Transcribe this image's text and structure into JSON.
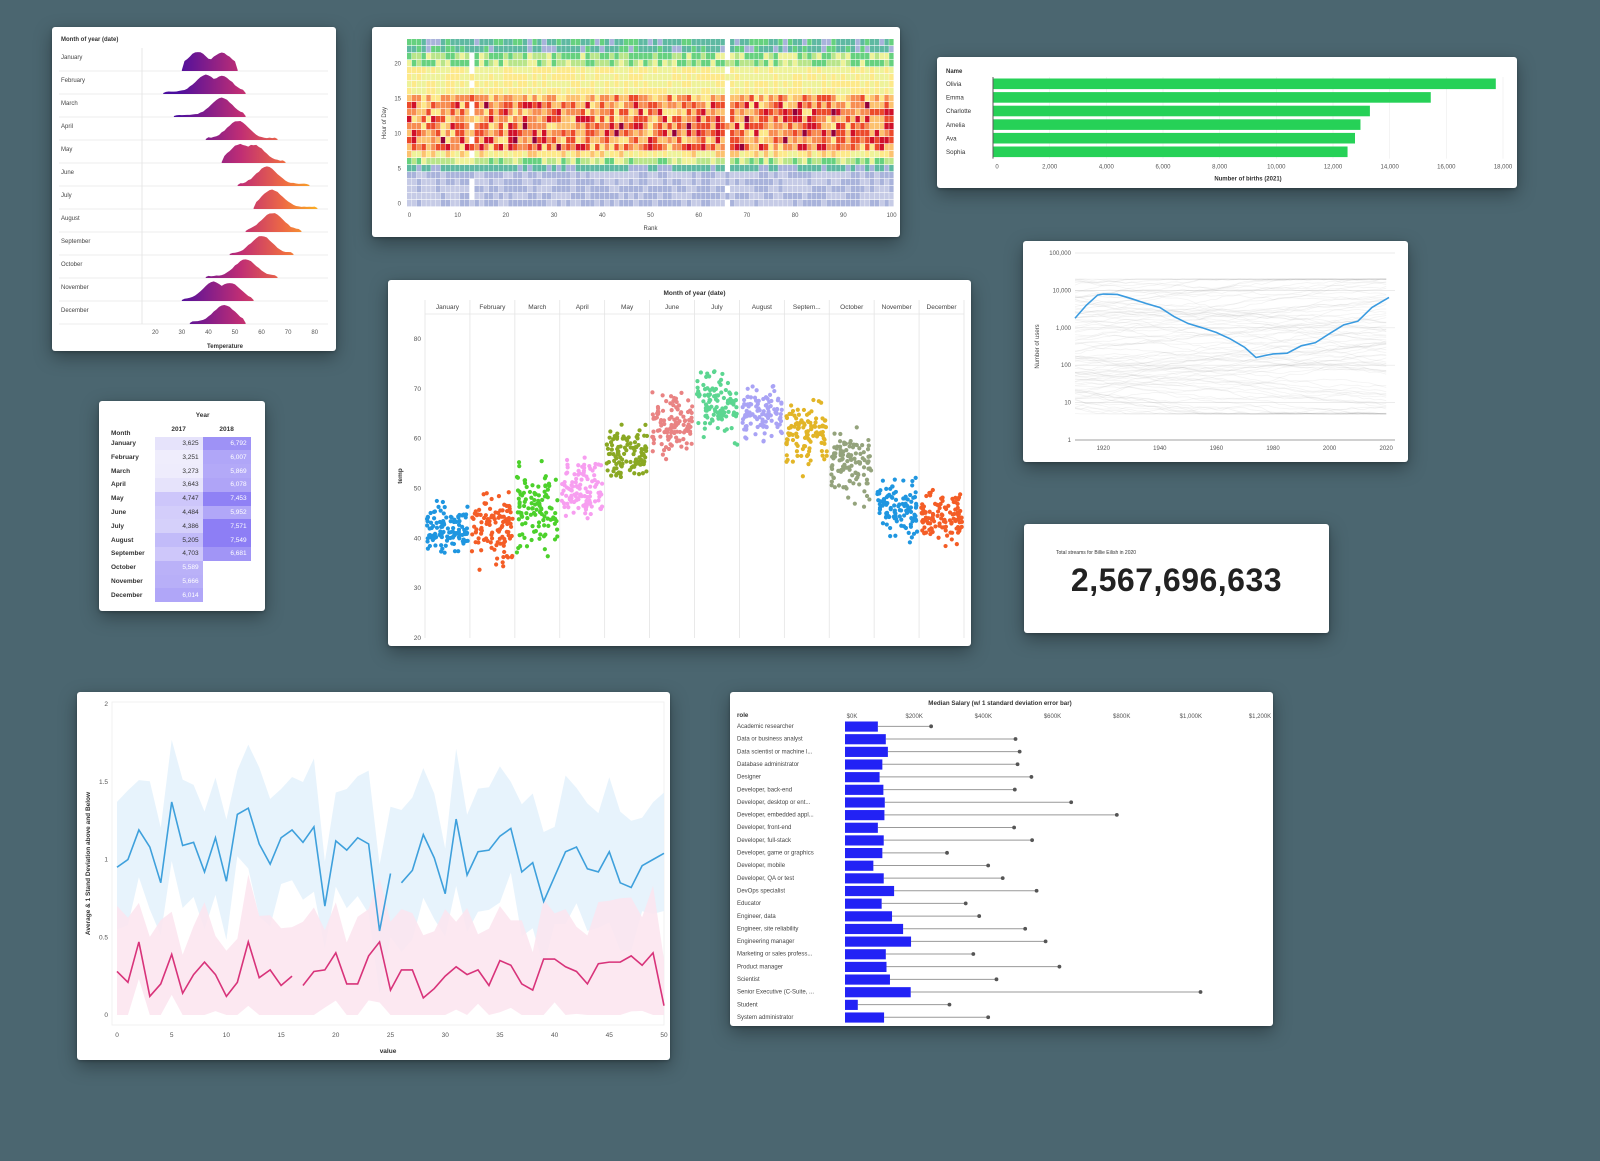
{
  "page": {
    "background": "#4b6670"
  },
  "ridgeline": {
    "title": "Month of year (date)",
    "xlabel": "Temperature",
    "ticks": [
      20,
      30,
      40,
      50,
      60,
      70,
      80
    ],
    "months": [
      "January",
      "February",
      "March",
      "April",
      "May",
      "June",
      "July",
      "August",
      "September",
      "October",
      "November",
      "December"
    ]
  },
  "heatmap": {
    "ylabel": "Hour of Day",
    "xlabel": "Rank",
    "xticks": [
      0,
      10,
      20,
      30,
      40,
      50,
      60,
      70,
      80,
      90,
      100
    ],
    "yticks": [
      0,
      5,
      10,
      15,
      20
    ]
  },
  "births": {
    "header": "Name",
    "xlabel": "Number of births (2021)",
    "color": "#26d157",
    "ticks": [
      "0",
      "2,000",
      "4,000",
      "6,000",
      "8,000",
      "10,000",
      "12,000",
      "14,000",
      "16,000",
      "18,000"
    ]
  },
  "users": {
    "ylabel": "Number of users",
    "yticks": [
      "100,000",
      "10,000",
      "1,000",
      "100",
      "10",
      "1"
    ],
    "xticks": [
      "1920",
      "1940",
      "1960",
      "1980",
      "2000",
      "2020"
    ],
    "line_color": "#3a9be0"
  },
  "pivot": {
    "title": "Year",
    "row_header": "Month",
    "columns": [
      "2017",
      "2018"
    ],
    "rows": [
      {
        "month": "January",
        "v2017": "3,625",
        "v2018": "6,792"
      },
      {
        "month": "February",
        "v2017": "3,251",
        "v2018": "6,007"
      },
      {
        "month": "March",
        "v2017": "3,273",
        "v2018": "5,869"
      },
      {
        "month": "April",
        "v2017": "3,643",
        "v2018": "6,078"
      },
      {
        "month": "May",
        "v2017": "4,747",
        "v2018": "7,453"
      },
      {
        "month": "June",
        "v2017": "4,484",
        "v2018": "5,952"
      },
      {
        "month": "July",
        "v2017": "4,386",
        "v2018": "7,571"
      },
      {
        "month": "August",
        "v2017": "5,205",
        "v2018": "7,549"
      },
      {
        "month": "September",
        "v2017": "4,703",
        "v2018": "6,681"
      },
      {
        "month": "October",
        "v2017": "5,589",
        "v2018": ""
      },
      {
        "month": "November",
        "v2017": "5,666",
        "v2018": ""
      },
      {
        "month": "December",
        "v2017": "6,014",
        "v2018": ""
      }
    ]
  },
  "scatter": {
    "title": "Month of year (date)",
    "ylabel": "temp",
    "yticks": [
      20,
      30,
      40,
      50,
      60,
      70,
      80
    ],
    "columns": [
      "January",
      "February",
      "March",
      "April",
      "May",
      "June",
      "July",
      "August",
      "Septem...",
      "October",
      "November",
      "December"
    ],
    "colors": [
      "#1f96e0",
      "#f45d26",
      "#4cd12b",
      "#f79ef0",
      "#8aa823",
      "#e98383",
      "#5cd691",
      "#a9a3f5",
      "#e2b527",
      "#94a37c",
      "#1f96e0",
      "#f45d26"
    ]
  },
  "kpi": {
    "label": "Total streams for Billie Eilish in 2020",
    "value": "2,567,696,633"
  },
  "band": {
    "ylabel": "Average & 1 Stand Deviation above and Below",
    "xlabel": "value",
    "xticks": [
      0,
      5,
      10,
      15,
      20,
      25,
      30,
      35,
      40,
      45,
      50
    ],
    "yticks": [
      "0",
      "0.5",
      "1",
      "1.5",
      "2"
    ],
    "colors": {
      "blue": "#3ea0dc",
      "pink": "#d8337a"
    }
  },
  "salary": {
    "title": "Median Salary (w/ 1 standard deviation error bar)",
    "row_header": "role",
    "ticks": [
      "$0K",
      "$200K",
      "$400K",
      "$600K",
      "$800K",
      "$1,000K",
      "$1,200K"
    ],
    "bar_color": "#2222f5"
  },
  "chart_data": [
    {
      "type": "area",
      "subtype": "ridgeline",
      "title": "Month of year (date)",
      "xlabel": "Temperature",
      "xlim": [
        15,
        85
      ],
      "categories": [
        "January",
        "February",
        "March",
        "April",
        "May",
        "June",
        "July",
        "August",
        "September",
        "October",
        "November",
        "December"
      ],
      "ranges": [
        [
          30,
          51
        ],
        [
          23,
          54
        ],
        [
          27,
          54
        ],
        [
          39,
          66
        ],
        [
          45,
          69
        ],
        [
          51,
          78
        ],
        [
          57,
          81
        ],
        [
          54,
          75
        ],
        [
          48,
          72
        ],
        [
          39,
          66
        ],
        [
          30,
          57
        ],
        [
          33,
          54
        ]
      ],
      "peaks": [
        [
          36,
          45
        ],
        [
          39,
          45
        ],
        [
          45
        ],
        [
          51
        ],
        [
          52,
          57
        ],
        [
          62
        ],
        [
          64
        ],
        [
          64
        ],
        [
          60
        ],
        [
          54
        ],
        [
          42,
          48
        ],
        [
          46
        ]
      ]
    },
    {
      "type": "heatmap",
      "xlabel": "Rank",
      "ylabel": "Hour of Day",
      "xlim": [
        0,
        100
      ],
      "ylim": [
        0,
        23
      ],
      "color_scheme": "spectral",
      "note": "Hours 0-5 low (blue), 6-7 and 17-23 medium (yellow/green), 8-15 high (orange/red)"
    },
    {
      "type": "bar",
      "orientation": "horizontal",
      "categories": [
        "Olivia",
        "Emma",
        "Charlotte",
        "Amelia",
        "Ava",
        "Sophia"
      ],
      "values": [
        17728,
        15433,
        13285,
        12952,
        12759,
        12496
      ],
      "xlabel": "Number of births (2021)",
      "ylabel": "Name",
      "xlim": [
        0,
        18000
      ]
    },
    {
      "type": "line",
      "yscale": "log",
      "ylabel": "Number of users",
      "xlim": [
        1910,
        2021
      ],
      "ylim": [
        1,
        100000
      ],
      "highlight": {
        "x": [
          1910,
          1914,
          1918,
          1920,
          1925,
          1930,
          1935,
          1940,
          1945,
          1950,
          1955,
          1960,
          1965,
          1970,
          1974,
          1977,
          1980,
          1985,
          1990,
          1995,
          2000,
          2005,
          2010,
          2015,
          2021
        ],
        "y": [
          1800,
          4000,
          7500,
          8000,
          7800,
          6000,
          4500,
          3500,
          2000,
          1300,
          1000,
          750,
          500,
          300,
          160,
          180,
          200,
          210,
          330,
          400,
          700,
          1200,
          1500,
          3500,
          6500
        ]
      },
      "background_series": "~100 faint gray lines"
    },
    {
      "type": "table",
      "title": "Year",
      "row_header": "Month",
      "columns": [
        "2017",
        "2018"
      ],
      "rows": [
        "January",
        "February",
        "March",
        "April",
        "May",
        "June",
        "July",
        "August",
        "September",
        "October",
        "November",
        "December"
      ],
      "values": [
        [
          3625,
          6792
        ],
        [
          3251,
          6007
        ],
        [
          3273,
          5869
        ],
        [
          3643,
          6078
        ],
        [
          4747,
          7453
        ],
        [
          4484,
          5952
        ],
        [
          4386,
          7571
        ],
        [
          5205,
          7549
        ],
        [
          4703,
          6681
        ],
        [
          5589,
          null
        ],
        [
          5666,
          null
        ],
        [
          6014,
          null
        ]
      ]
    },
    {
      "type": "scatter",
      "subtype": "faceted strip",
      "title": "Month of year (date)",
      "ylabel": "temp",
      "ylim": [
        20,
        85
      ],
      "categories": [
        "January",
        "February",
        "March",
        "April",
        "May",
        "June",
        "July",
        "August",
        "September",
        "October",
        "November",
        "December"
      ],
      "ranges": [
        [
          31,
          53
        ],
        [
          24,
          55
        ],
        [
          27,
          61
        ],
        [
          39,
          68
        ],
        [
          45,
          70
        ],
        [
          52,
          79
        ],
        [
          58,
          84
        ],
        [
          56,
          76
        ],
        [
          49,
          75
        ],
        [
          40,
          69
        ],
        [
          32,
          58
        ],
        [
          34,
          57
        ]
      ],
      "means": [
        42,
        42,
        46,
        50,
        57,
        63,
        67,
        65,
        61,
        55,
        46,
        44
      ]
    },
    {
      "type": "table",
      "subtype": "kpi",
      "title": "Total streams for Billie Eilish in 2020",
      "values": [
        2567696633
      ]
    },
    {
      "type": "line",
      "subtype": "line with error band",
      "xlabel": "value",
      "ylabel": "Average & 1 Stand Deviation above and Below",
      "xlim": [
        0,
        50
      ],
      "ylim": [
        0,
        2
      ],
      "series": [
        {
          "name": "blue",
          "color": "#3ea0dc",
          "values": [
            0.95,
            1.0,
            1.19,
            1.08,
            0.85,
            1.37,
            1.09,
            1.11,
            0.92,
            1.14,
            0.86,
            1.29,
            1.33,
            1.1,
            0.97,
            1.14,
            1.19,
            1.11,
            1.21,
            0.7,
            1.12,
            1.06,
            1.14,
            1.1,
            0.54,
            0.91,
            0.85,
            0.93,
            1.16,
            1.01,
            0.78,
            1.26,
            0.9,
            1.05,
            1.06,
            1.15,
            1.2,
            0.92,
            0.98,
            0.73,
            0.89,
            1.05,
            1.08,
            0.94,
            0.92,
            1.05,
            0.85,
            0.82,
            0.96,
            1.0,
            1.04
          ]
        },
        {
          "name": "pink",
          "color": "#d8337a",
          "values": [
            0.28,
            0.21,
            0.47,
            0.12,
            0.2,
            0.39,
            0.14,
            0.26,
            0.34,
            0.26,
            0.12,
            0.21,
            0.47,
            0.24,
            0.29,
            0.19,
            0.25,
            0.19,
            0.28,
            0.29,
            0.4,
            0.2,
            0.2,
            0.38,
            0.47,
            0.16,
            0.29,
            0.29,
            0.11,
            0.17,
            0.25,
            0.31,
            0.26,
            0.29,
            0.19,
            0.35,
            0.32,
            0.2,
            0.16,
            0.36,
            0.36,
            0.31,
            0.28,
            0.2,
            0.33,
            0.34,
            0.34,
            0.38,
            0.32,
            0.4,
            0.06
          ]
        }
      ]
    },
    {
      "type": "bar",
      "orientation": "horizontal",
      "subtype": "bar with error bar",
      "title": "Median Salary (w/ 1 standard deviation error bar)",
      "ylabel": "role",
      "xlim": [
        0,
        1200000
      ],
      "categories": [
        "Academic researcher",
        "Data or business analyst",
        "Data scientist or machine l...",
        "Database administrator",
        "Designer",
        "Developer, back-end",
        "Developer, desktop or ent...",
        "Developer, embedded appl...",
        "Developer, front-end",
        "Developer, full-stack",
        "Developer, game or graphics",
        "Developer, mobile",
        "Developer, QA or test",
        "DevOps specialist",
        "Educator",
        "Engineer, data",
        "Engineer, site reliability",
        "Engineering manager",
        "Marketing or sales profess...",
        "Product manager",
        "Scientist",
        "Senior Executive (C-Suite, ...",
        "Student",
        "System administrator"
      ],
      "values": [
        95000,
        118000,
        124000,
        108000,
        100000,
        111000,
        115000,
        114000,
        95000,
        112000,
        108000,
        82000,
        112000,
        142000,
        106000,
        136000,
        168000,
        191000,
        118000,
        120000,
        130000,
        190000,
        37000,
        113000
      ],
      "error_upper": [
        249000,
        493000,
        505000,
        499000,
        539000,
        491000,
        654000,
        786000,
        489000,
        541000,
        295000,
        414000,
        456000,
        554000,
        349000,
        388000,
        521000,
        580000,
        371000,
        620000,
        438000,
        1028000,
        302000,
        414000
      ]
    }
  ]
}
